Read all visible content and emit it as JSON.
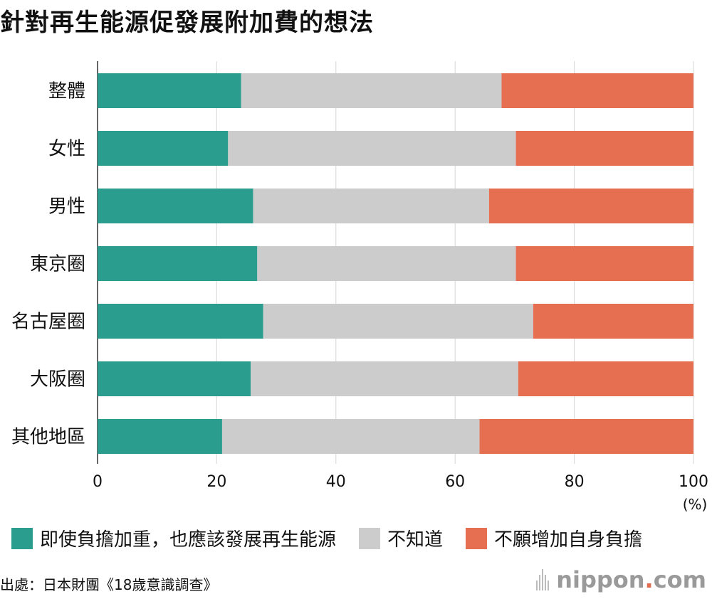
{
  "title": "針對再生能源促發展附加費的想法",
  "chart_data": {
    "type": "bar",
    "orientation": "horizontal",
    "stacked": true,
    "categories": [
      "整體",
      "女性",
      "男性",
      "東京圈",
      "名古屋圈",
      "大阪圈",
      "其他地區"
    ],
    "series": [
      {
        "name": "即使負擔加重，也應該發展再生能源",
        "color": "#2a9d8f",
        "values": [
          24.1,
          21.9,
          26.1,
          26.8,
          27.8,
          25.7,
          20.9
        ]
      },
      {
        "name": "不知道",
        "color": "#cccccc",
        "values": [
          43.7,
          48.3,
          39.6,
          43.4,
          45.3,
          44.9,
          43.2
        ]
      },
      {
        "name": "不願增加自身負擔",
        "color": "#e76f51",
        "values": [
          32.2,
          29.8,
          34.3,
          29.8,
          26.9,
          29.4,
          35.9
        ]
      }
    ],
    "x_ticks": [
      0,
      20,
      40,
      60,
      80,
      100
    ],
    "xlim": [
      0,
      100
    ],
    "unit": "(%)",
    "grid": "vertical",
    "legend_position": "bottom"
  },
  "source": "出處：日本財團《18歲意識調查》",
  "brand": {
    "name": "nippon",
    "dot": ".",
    "suffix": "com"
  }
}
